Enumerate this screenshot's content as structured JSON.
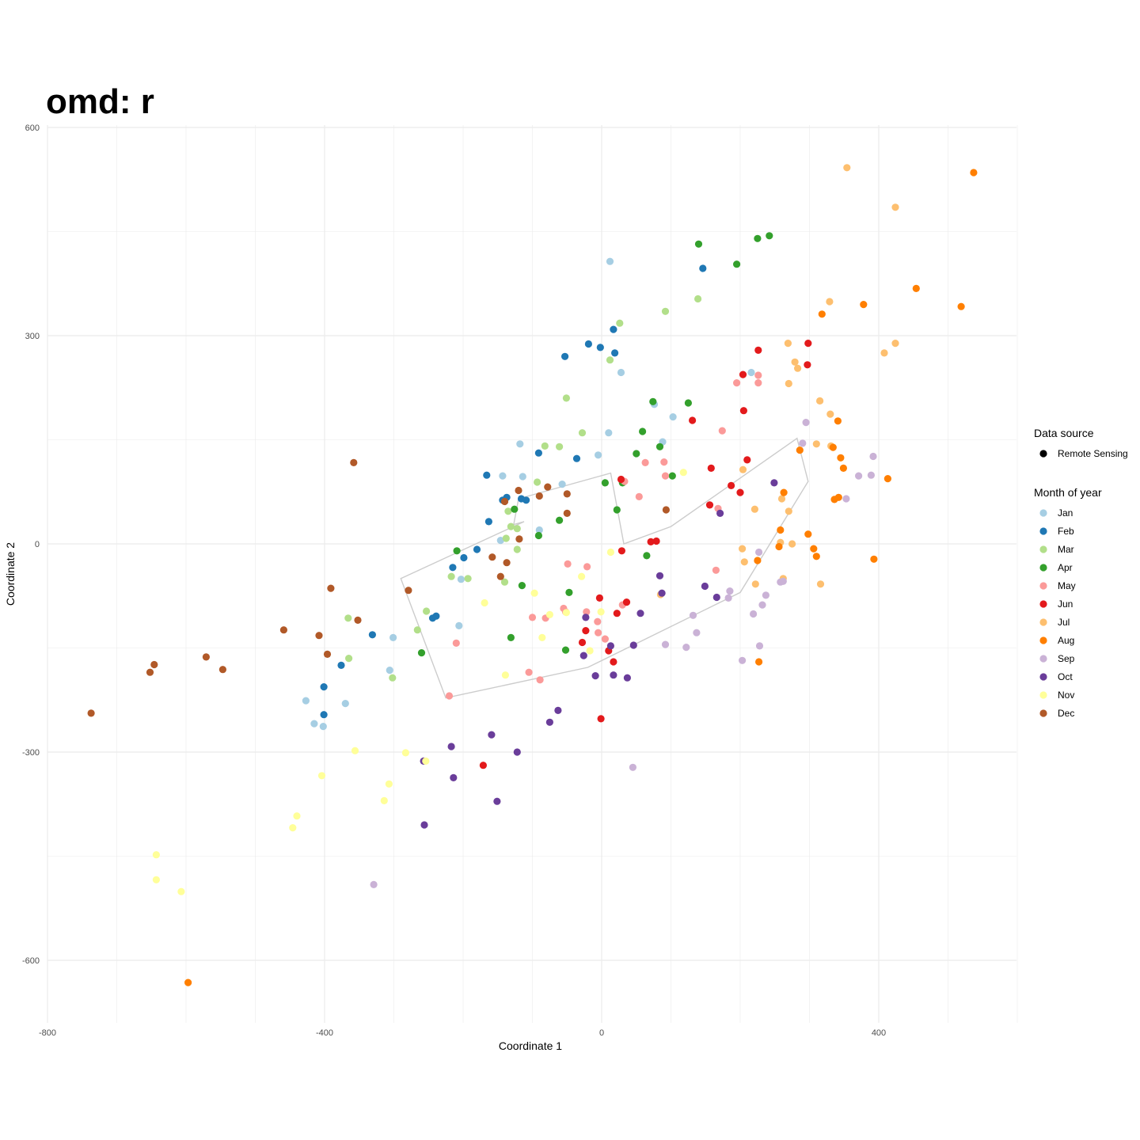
{
  "chart_data": {
    "type": "scatter",
    "title": "omd: r",
    "xlabel": "Coordinate 1",
    "ylabel": "Coordinate 2",
    "xlim": [
      -800,
      600
    ],
    "ylim": [
      -690,
      605
    ],
    "x_ticks": [
      {
        "value": -800,
        "label": "-800"
      },
      {
        "value": -400,
        "label": "-400"
      },
      {
        "value": 0,
        "label": "0"
      },
      {
        "value": 400,
        "label": "400"
      }
    ],
    "y_ticks": [
      {
        "value": 600,
        "label": "600"
      },
      {
        "value": 300,
        "label": "300"
      },
      {
        "value": 0,
        "label": "0"
      },
      {
        "value": -300,
        "label": "-300"
      },
      {
        "value": -600,
        "label": "-600"
      }
    ],
    "grid": true,
    "legend_position": "right",
    "legend_source": {
      "title": "Data source",
      "entries": [
        {
          "label": "Remote Sensing",
          "color": "#000000"
        }
      ]
    },
    "legend_month": {
      "title": "Month of year",
      "entries": [
        {
          "label": "Jan",
          "color": "#a6cee3"
        },
        {
          "label": "Feb",
          "color": "#1f78b4"
        },
        {
          "label": "Mar",
          "color": "#b2df8a"
        },
        {
          "label": "Apr",
          "color": "#33a02c"
        },
        {
          "label": "May",
          "color": "#fb9a99"
        },
        {
          "label": "Jun",
          "color": "#e31a1c"
        },
        {
          "label": "Jul",
          "color": "#fdbf6f"
        },
        {
          "label": "Aug",
          "color": "#ff7f00"
        },
        {
          "label": "Sep",
          "color": "#cab2d6"
        },
        {
          "label": "Oct",
          "color": "#6a3d9a"
        },
        {
          "label": "Nov",
          "color": "#ffff99"
        },
        {
          "label": "Dec",
          "color": "#b15928"
        }
      ]
    },
    "hull": [
      [
        -290,
        -50
      ],
      [
        -225,
        -222
      ],
      [
        -20,
        -178
      ],
      [
        200,
        -70
      ],
      [
        298,
        90
      ],
      [
        282,
        152
      ],
      [
        100,
        25
      ],
      [
        32,
        0
      ],
      [
        13,
        102
      ],
      [
        -120,
        65
      ],
      [
        -127,
        28
      ],
      [
        -112,
        32
      ]
    ],
    "series": [
      {
        "name": "Jan",
        "color": "#a6cee3",
        "points": [
          [
            12,
            407
          ],
          [
            28,
            247
          ],
          [
            76,
            201
          ],
          [
            103,
            183
          ],
          [
            10,
            160
          ],
          [
            88,
            147
          ],
          [
            -5,
            128
          ],
          [
            -118,
            144
          ],
          [
            -143,
            98
          ],
          [
            -114,
            97
          ],
          [
            -57,
            86
          ],
          [
            -90,
            20
          ],
          [
            -146,
            5
          ],
          [
            -203,
            -51
          ],
          [
            -206,
            -118
          ],
          [
            -301,
            -135
          ],
          [
            -306,
            -182
          ],
          [
            -427,
            -226
          ],
          [
            -415,
            -259
          ],
          [
            -402,
            -263
          ],
          [
            -370,
            -230
          ],
          [
            216,
            247
          ]
        ]
      },
      {
        "name": "Feb",
        "color": "#1f78b4",
        "points": [
          [
            146,
            397
          ],
          [
            17,
            309
          ],
          [
            19,
            275
          ],
          [
            -19,
            288
          ],
          [
            -2,
            283
          ],
          [
            -53,
            270
          ],
          [
            -36,
            123
          ],
          [
            -91,
            131
          ],
          [
            -166,
            99
          ],
          [
            -137,
            67
          ],
          [
            -116,
            65
          ],
          [
            -109,
            63
          ],
          [
            -143,
            63
          ],
          [
            -163,
            32
          ],
          [
            -180,
            -8
          ],
          [
            -199,
            -20
          ],
          [
            -215,
            -34
          ],
          [
            -239,
            -104
          ],
          [
            -244,
            -107
          ],
          [
            -331,
            -131
          ],
          [
            -376,
            -175
          ],
          [
            -401,
            -206
          ],
          [
            -401,
            -246
          ]
        ]
      },
      {
        "name": "Mar",
        "color": "#b2df8a",
        "points": [
          [
            26,
            318
          ],
          [
            139,
            353
          ],
          [
            92,
            335
          ],
          [
            12,
            265
          ],
          [
            -51,
            210
          ],
          [
            -28,
            160
          ],
          [
            -82,
            141
          ],
          [
            -61,
            140
          ],
          [
            -93,
            89
          ],
          [
            -135,
            47
          ],
          [
            -131,
            25
          ],
          [
            -122,
            22
          ],
          [
            -138,
            8
          ],
          [
            -122,
            -8
          ],
          [
            -193,
            -50
          ],
          [
            -217,
            -47
          ],
          [
            -140,
            -55
          ],
          [
            -253,
            -97
          ],
          [
            -266,
            -124
          ],
          [
            -366,
            -107
          ],
          [
            -365,
            -165
          ],
          [
            -302,
            -193
          ]
        ]
      },
      {
        "name": "Apr",
        "color": "#33a02c",
        "points": [
          [
            140,
            432
          ],
          [
            225,
            440
          ],
          [
            242,
            444
          ],
          [
            195,
            403
          ],
          [
            74,
            205
          ],
          [
            125,
            203
          ],
          [
            59,
            162
          ],
          [
            84,
            140
          ],
          [
            50,
            130
          ],
          [
            102,
            98
          ],
          [
            5,
            88
          ],
          [
            30,
            88
          ],
          [
            22,
            49
          ],
          [
            -126,
            50
          ],
          [
            -61,
            34
          ],
          [
            -91,
            12
          ],
          [
            -47,
            -70
          ],
          [
            -115,
            -60
          ],
          [
            -209,
            -10
          ],
          [
            -260,
            -157
          ],
          [
            -131,
            -135
          ],
          [
            -52,
            -153
          ],
          [
            65,
            -17
          ]
        ]
      },
      {
        "name": "May",
        "color": "#fb9a99",
        "points": [
          [
            226,
            243
          ],
          [
            195,
            232
          ],
          [
            226,
            232
          ],
          [
            174,
            163
          ],
          [
            63,
            117
          ],
          [
            90,
            118
          ],
          [
            33,
            90
          ],
          [
            92,
            98
          ],
          [
            54,
            68
          ],
          [
            168,
            51
          ],
          [
            165,
            -38
          ],
          [
            -49,
            -29
          ],
          [
            -21,
            -33
          ],
          [
            -55,
            -93
          ],
          [
            -100,
            -106
          ],
          [
            -52,
            -98
          ],
          [
            -22,
            -98
          ],
          [
            -6,
            -112
          ],
          [
            -81,
            -107
          ],
          [
            -5,
            -128
          ],
          [
            5,
            -137
          ],
          [
            -105,
            -185
          ],
          [
            -210,
            -143
          ],
          [
            -220,
            -219
          ],
          [
            30,
            -88
          ],
          [
            -89,
            -196
          ]
        ]
      },
      {
        "name": "Jun",
        "color": "#e31a1c",
        "points": [
          [
            226,
            279
          ],
          [
            298,
            289
          ],
          [
            297,
            258
          ],
          [
            204,
            244
          ],
          [
            205,
            192
          ],
          [
            131,
            178
          ],
          [
            158,
            109
          ],
          [
            210,
            121
          ],
          [
            187,
            84
          ],
          [
            200,
            74
          ],
          [
            156,
            56
          ],
          [
            28,
            93
          ],
          [
            79,
            4
          ],
          [
            71,
            3
          ],
          [
            29,
            -10
          ],
          [
            -3,
            -78
          ],
          [
            36,
            -84
          ],
          [
            -23,
            -125
          ],
          [
            22,
            -100
          ],
          [
            -28,
            -142
          ],
          [
            10,
            -154
          ],
          [
            17,
            -170
          ],
          [
            -171,
            -319
          ],
          [
            -1,
            -252
          ]
        ]
      },
      {
        "name": "Jul",
        "color": "#fdbf6f",
        "points": [
          [
            354,
            542
          ],
          [
            424,
            485
          ],
          [
            329,
            349
          ],
          [
            269,
            289
          ],
          [
            424,
            289
          ],
          [
            279,
            262
          ],
          [
            283,
            253
          ],
          [
            408,
            275
          ],
          [
            270,
            231
          ],
          [
            315,
            206
          ],
          [
            330,
            187
          ],
          [
            310,
            144
          ],
          [
            331,
            141
          ],
          [
            204,
            107
          ],
          [
            221,
            50
          ],
          [
            260,
            65
          ],
          [
            270,
            47
          ],
          [
            203,
            -7
          ],
          [
            206,
            -26
          ],
          [
            258,
            2
          ],
          [
            262,
            -50
          ],
          [
            316,
            -58
          ],
          [
            222,
            -58
          ],
          [
            275,
            0
          ],
          [
            85,
            -73
          ]
        ]
      },
      {
        "name": "Aug",
        "color": "#ff7f00",
        "points": [
          [
            537,
            535
          ],
          [
            454,
            368
          ],
          [
            519,
            342
          ],
          [
            378,
            345
          ],
          [
            318,
            331
          ],
          [
            341,
            177
          ],
          [
            334,
            139
          ],
          [
            345,
            124
          ],
          [
            286,
            135
          ],
          [
            349,
            109
          ],
          [
            393,
            -22
          ],
          [
            413,
            94
          ],
          [
            342,
            67
          ],
          [
            336,
            64
          ],
          [
            298,
            14
          ],
          [
            306,
            -7
          ],
          [
            310,
            -18
          ],
          [
            258,
            20
          ],
          [
            263,
            74
          ],
          [
            256,
            -4
          ],
          [
            225,
            -24
          ],
          [
            227,
            -170
          ],
          [
            -597,
            -632
          ]
        ]
      },
      {
        "name": "Sep",
        "color": "#cab2d6",
        "points": [
          [
            295,
            175
          ],
          [
            290,
            145
          ],
          [
            392,
            126
          ],
          [
            371,
            98
          ],
          [
            389,
            99
          ],
          [
            353,
            65
          ],
          [
            227,
            -12
          ],
          [
            219,
            -101
          ],
          [
            203,
            -168
          ],
          [
            228,
            -147
          ],
          [
            232,
            -88
          ],
          [
            183,
            -78
          ],
          [
            185,
            -68
          ],
          [
            237,
            -74
          ],
          [
            258,
            -55
          ],
          [
            262,
            -54
          ],
          [
            132,
            -103
          ],
          [
            137,
            -128
          ],
          [
            92,
            -145
          ],
          [
            122,
            -149
          ],
          [
            45,
            -322
          ],
          [
            -329,
            -491
          ]
        ]
      },
      {
        "name": "Oct",
        "color": "#6a3d9a",
        "points": [
          [
            249,
            88
          ],
          [
            171,
            44
          ],
          [
            84,
            -46
          ],
          [
            149,
            -61
          ],
          [
            166,
            -77
          ],
          [
            -23,
            -106
          ],
          [
            56,
            -100
          ],
          [
            87,
            -71
          ],
          [
            -26,
            -161
          ],
          [
            13,
            -147
          ],
          [
            46,
            -146
          ],
          [
            -9,
            -190
          ],
          [
            17,
            -189
          ],
          [
            37,
            -193
          ],
          [
            -63,
            -240
          ],
          [
            -75,
            -257
          ],
          [
            -159,
            -275
          ],
          [
            -122,
            -300
          ],
          [
            -217,
            -292
          ],
          [
            -214,
            -337
          ],
          [
            -151,
            -371
          ],
          [
            -256,
            -405
          ],
          [
            -257,
            -313
          ]
        ]
      },
      {
        "name": "Nov",
        "color": "#ffff99",
        "points": [
          [
            118,
            103
          ],
          [
            13,
            -12
          ],
          [
            -29,
            -47
          ],
          [
            -97,
            -71
          ],
          [
            -169,
            -85
          ],
          [
            -51,
            -99
          ],
          [
            -75,
            -102
          ],
          [
            -1,
            -98
          ],
          [
            -86,
            -135
          ],
          [
            -17,
            -154
          ],
          [
            -139,
            -189
          ],
          [
            -356,
            -298
          ],
          [
            -283,
            -301
          ],
          [
            -254,
            -313
          ],
          [
            -404,
            -334
          ],
          [
            -307,
            -346
          ],
          [
            -314,
            -370
          ],
          [
            -440,
            -392
          ],
          [
            -446,
            -409
          ],
          [
            -643,
            -448
          ],
          [
            -643,
            -484
          ],
          [
            -607,
            -501
          ]
        ]
      },
      {
        "name": "Dec",
        "color": "#b15928",
        "points": [
          [
            -358,
            117
          ],
          [
            -78,
            82
          ],
          [
            -120,
            77
          ],
          [
            -50,
            72
          ],
          [
            -90,
            69
          ],
          [
            -140,
            61
          ],
          [
            -50,
            44
          ],
          [
            -119,
            7
          ],
          [
            -158,
            -19
          ],
          [
            -137,
            -27
          ],
          [
            -146,
            -47
          ],
          [
            -279,
            -67
          ],
          [
            -391,
            -64
          ],
          [
            -352,
            -110
          ],
          [
            -459,
            -124
          ],
          [
            -408,
            -132
          ],
          [
            -396,
            -159
          ],
          [
            -571,
            -163
          ],
          [
            -646,
            -174
          ],
          [
            -652,
            -185
          ],
          [
            -547,
            -181
          ],
          [
            -737,
            -244
          ],
          [
            93,
            49
          ]
        ]
      }
    ]
  }
}
